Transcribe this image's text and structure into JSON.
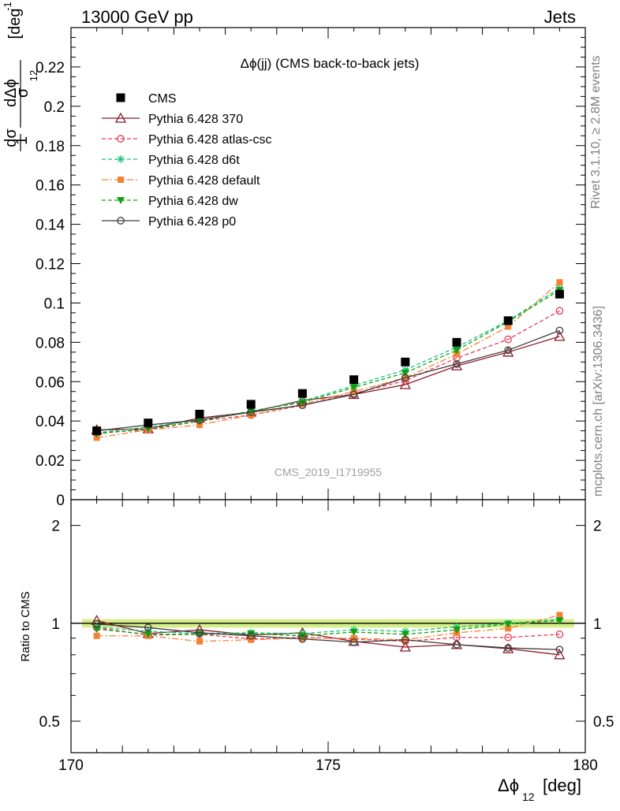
{
  "header": {
    "left": "13000 GeV pp",
    "right": "Jets"
  },
  "side_texts": {
    "rivet": "Rivet 3.1.10, ≥ 2.8M events",
    "mcplots": "mcplots.cern.ch [arXiv:1306.3436]"
  },
  "watermark": "CMS_2019_I1719955",
  "chart_data": [
    {
      "type": "line",
      "title": "Δϕ(jj) (CMS back-to-back jets)",
      "ylabel": "1/σ dσ/dΔϕ₁₂ [deg⁻¹]",
      "xlim": [
        170,
        180
      ],
      "ylim": [
        0,
        0.24
      ],
      "y_ticks": [
        "0",
        "0.02",
        "0.04",
        "0.06",
        "0.08",
        "0.1",
        "0.12",
        "0.14",
        "0.16",
        "0.18",
        "0.2",
        "0.22"
      ],
      "legend_position": "top-left",
      "x": [
        170.5,
        171.5,
        172.5,
        173.5,
        174.5,
        175.5,
        176.5,
        177.5,
        178.5,
        179.5
      ],
      "series": [
        {
          "name": "CMS",
          "key": "cms",
          "color": "#000000",
          "marker": "square",
          "dash": "",
          "values": [
            0.035,
            0.039,
            0.0435,
            0.0485,
            0.054,
            0.061,
            0.07,
            0.08,
            0.091,
            0.1045
          ]
        },
        {
          "name": "Pythia 6.428 370",
          "key": "p370",
          "color": "#8b1a2b",
          "marker": "triangle-open",
          "dash": "",
          "values": [
            0.0355,
            0.036,
            0.0415,
            0.0445,
            0.0505,
            0.0535,
            0.0585,
            0.068,
            0.075,
            0.083
          ]
        },
        {
          "name": "Pythia 6.428 atlas-csc",
          "key": "atlas",
          "color": "#e8395a",
          "marker": "circle-open",
          "dash": "5,3",
          "values": [
            0.034,
            0.0355,
            0.04,
            0.043,
            0.048,
            0.054,
            0.0605,
            0.072,
            0.0815,
            0.096
          ]
        },
        {
          "name": "Pythia 6.428 d6t",
          "key": "d6t",
          "color": "#12c47a",
          "marker": "star",
          "dash": "5,3",
          "values": [
            0.034,
            0.037,
            0.0405,
            0.045,
            0.05,
            0.058,
            0.066,
            0.0775,
            0.091,
            0.1075
          ]
        },
        {
          "name": "Pythia 6.428 default",
          "key": "default",
          "color": "#f58232",
          "marker": "square-small",
          "dash": "8,3,2,3",
          "values": [
            0.0315,
            0.0355,
            0.038,
            0.043,
            0.0485,
            0.055,
            0.062,
            0.074,
            0.088,
            0.1105
          ]
        },
        {
          "name": "Pythia 6.428 dw",
          "key": "dw",
          "color": "#12a012",
          "marker": "triangle-down",
          "dash": "5,3",
          "values": [
            0.0335,
            0.036,
            0.04,
            0.045,
            0.0495,
            0.057,
            0.0645,
            0.076,
            0.0905,
            0.1065
          ]
        },
        {
          "name": "Pythia 6.428 p0",
          "key": "p0",
          "color": "#3c3c3c",
          "marker": "circle-open",
          "dash": "",
          "values": [
            0.035,
            0.038,
            0.0405,
            0.0445,
            0.048,
            0.0535,
            0.062,
            0.069,
            0.076,
            0.086
          ]
        }
      ]
    },
    {
      "type": "line",
      "xlabel": "Δϕ₁₂ [deg]",
      "ylabel": "Ratio to CMS",
      "xlim": [
        170,
        180
      ],
      "ylim": [
        0.4,
        2.4
      ],
      "y_scale": "log",
      "y_ticks": [
        "0.5",
        "1",
        "2"
      ],
      "x_ticks": [
        "170",
        "175",
        "180"
      ],
      "reference_band": [
        0.97,
        1.03
      ],
      "x": [
        170.5,
        171.5,
        172.5,
        173.5,
        174.5,
        175.5,
        176.5,
        177.5,
        178.5,
        179.5
      ],
      "series": [
        {
          "key": "p370",
          "values": [
            1.02,
            0.93,
            0.955,
            0.92,
            0.935,
            0.88,
            0.845,
            0.86,
            0.835,
            0.8
          ]
        },
        {
          "key": "atlas",
          "values": [
            0.97,
            0.92,
            0.925,
            0.895,
            0.905,
            0.895,
            0.88,
            0.905,
            0.905,
            0.925
          ]
        },
        {
          "key": "d6t",
          "values": [
            0.975,
            0.945,
            0.93,
            0.935,
            0.93,
            0.955,
            0.945,
            0.975,
            1.0,
            1.03
          ]
        },
        {
          "key": "default",
          "values": [
            0.915,
            0.915,
            0.88,
            0.89,
            0.9,
            0.9,
            0.89,
            0.935,
            0.965,
            1.06
          ]
        },
        {
          "key": "dw",
          "values": [
            0.96,
            0.925,
            0.925,
            0.93,
            0.915,
            0.94,
            0.925,
            0.955,
            0.995,
            1.02
          ]
        },
        {
          "key": "p0",
          "values": [
            0.995,
            0.97,
            0.935,
            0.915,
            0.895,
            0.875,
            0.89,
            0.86,
            0.84,
            0.83
          ]
        }
      ]
    }
  ]
}
